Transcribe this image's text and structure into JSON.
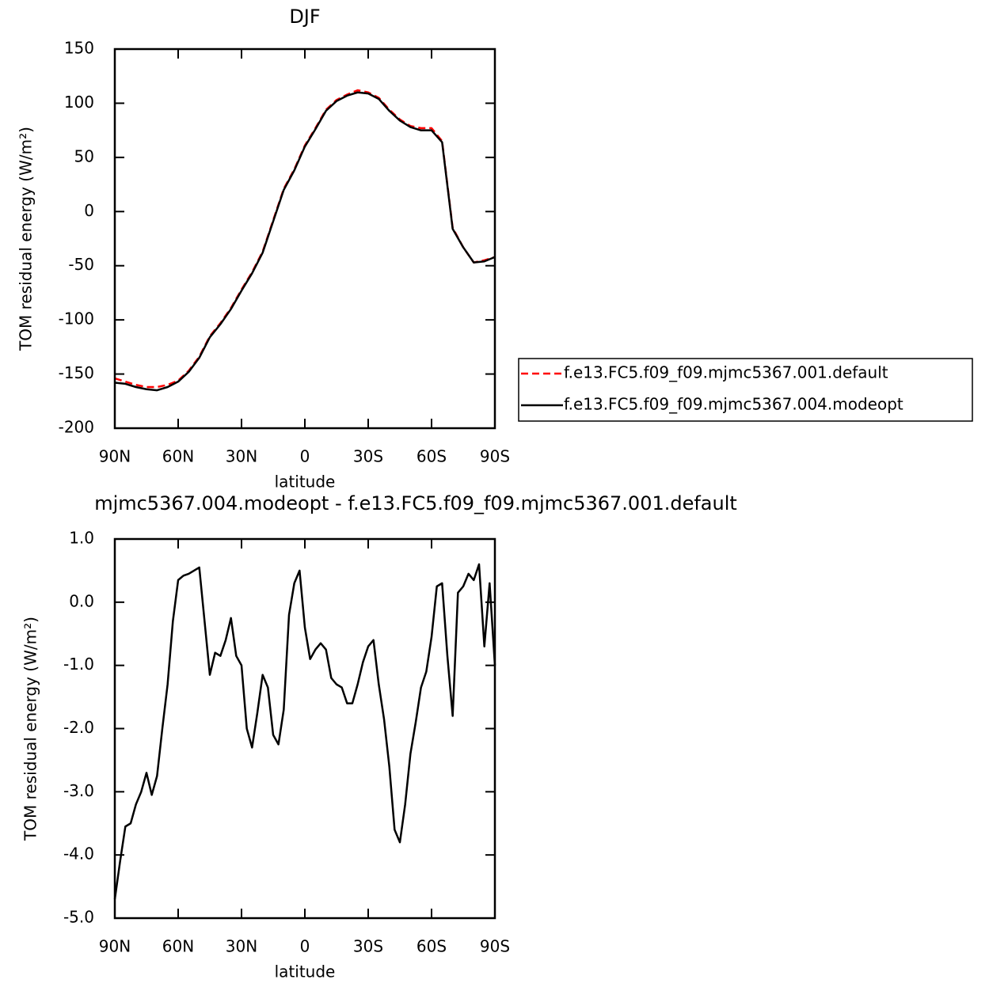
{
  "chart_data": [
    {
      "type": "line",
      "title": "DJF",
      "x_label": "latitude",
      "y_label": "TOM residual energy (W/m²)",
      "x": [
        90,
        85,
        80,
        75,
        70,
        65,
        60,
        55,
        50,
        45,
        40,
        35,
        30,
        25,
        20,
        15,
        10,
        5,
        0,
        -5,
        -10,
        -15,
        -20,
        -25,
        -30,
        -35,
        -40,
        -45,
        -50,
        -55,
        -60,
        -65,
        -70,
        -75,
        -80,
        -85,
        -90
      ],
      "xlim": [
        90,
        -90
      ],
      "xticks": [
        {
          "value": 90,
          "label": "90N"
        },
        {
          "value": 60,
          "label": "60N"
        },
        {
          "value": 30,
          "label": "30N"
        },
        0,
        {
          "value": -30,
          "label": "30S"
        },
        {
          "value": -60,
          "label": "60S"
        },
        {
          "value": -90,
          "label": "90S"
        }
      ],
      "ylim": [
        -200,
        150
      ],
      "yticks": [
        -200,
        -150,
        -100,
        -50,
        0,
        50,
        100,
        150
      ],
      "legend": "right",
      "series": [
        {
          "name": "f.e13.FC5.f09_f09.mjmc5367.001.default",
          "color": "#ff0000",
          "line_style": "dashed",
          "values": [
            -154,
            -157,
            -160,
            -162,
            -162,
            -160,
            -156,
            -147,
            -134,
            -115,
            -103,
            -89,
            -72,
            -56,
            -37,
            -8,
            21,
            39,
            61,
            77,
            94,
            103,
            108,
            112,
            110,
            105,
            94,
            85,
            79,
            77,
            77,
            65,
            -15,
            -33,
            -47,
            -45,
            -42
          ]
        },
        {
          "name": "f.e13.FC5.f09_f09.mjmc5367.004.modeopt",
          "color": "#000000",
          "line_style": "solid",
          "values": [
            -158,
            -159,
            -162,
            -164,
            -165,
            -162,
            -157,
            -148,
            -135,
            -116,
            -104,
            -90,
            -73,
            -57,
            -38,
            -9,
            20,
            38,
            60,
            76,
            93,
            102,
            107,
            110,
            109,
            104,
            93,
            84,
            78,
            75,
            75,
            64,
            -16,
            -33,
            -47,
            -46,
            -42
          ]
        }
      ]
    },
    {
      "type": "line",
      "title": "mjmc5367.004.modeopt - f.e13.FC5.f09_f09.mjmc5367.001.default",
      "x_label": "latitude",
      "y_label": "TOM residual energy (W/m²)",
      "x": [
        90,
        87.5,
        85,
        82.5,
        80,
        77.5,
        75,
        72.5,
        70,
        67.5,
        65,
        62.5,
        60,
        57.5,
        55,
        52.5,
        50,
        47.5,
        45,
        42.5,
        40,
        37.5,
        35,
        32.5,
        30,
        27.5,
        25,
        22.5,
        20,
        17.5,
        15,
        12.5,
        10,
        7.5,
        5,
        2.5,
        0,
        -2.5,
        -5,
        -7.5,
        -10,
        -12.5,
        -15,
        -17.5,
        -20,
        -22.5,
        -25,
        -27.5,
        -30,
        -32.5,
        -35,
        -37.5,
        -40,
        -42.5,
        -45,
        -47.5,
        -50,
        -52.5,
        -55,
        -57.5,
        -60,
        -62.5,
        -65,
        -67.5,
        -70,
        -72.5,
        -75,
        -77.5,
        -80,
        -82.5,
        -85,
        -87.5,
        -90
      ],
      "xlim": [
        90,
        -90
      ],
      "xticks": [
        {
          "value": 90,
          "label": "90N"
        },
        {
          "value": 60,
          "label": "60N"
        },
        {
          "value": 30,
          "label": "30N"
        },
        0,
        {
          "value": -30,
          "label": "30S"
        },
        {
          "value": -60,
          "label": "60S"
        },
        {
          "value": -90,
          "label": "90S"
        }
      ],
      "ylim": [
        -5,
        1
      ],
      "yticks": [
        {
          "value": -5,
          "label": "-5.0"
        },
        {
          "value": -4,
          "label": "-4.0"
        },
        {
          "value": -3,
          "label": "-3.0"
        },
        {
          "value": -2,
          "label": "-2.0"
        },
        {
          "value": -1,
          "label": "-1.0"
        },
        {
          "value": 0,
          "label": "0.0"
        },
        {
          "value": 1,
          "label": "1.0"
        }
      ],
      "series": [
        {
          "color": "#000000",
          "line_style": "solid",
          "values": [
            -4.7,
            -4.1,
            -3.55,
            -3.5,
            -3.2,
            -3.0,
            -2.7,
            -3.05,
            -2.75,
            -2.0,
            -1.3,
            -0.3,
            0.35,
            0.42,
            0.45,
            0.5,
            0.55,
            -0.3,
            -1.15,
            -0.8,
            -0.85,
            -0.6,
            -0.25,
            -0.85,
            -1.0,
            -2.0,
            -2.3,
            -1.75,
            -1.15,
            -1.35,
            -2.1,
            -2.25,
            -1.7,
            -0.2,
            0.3,
            0.5,
            -0.4,
            -0.9,
            -0.75,
            -0.65,
            -0.75,
            -1.2,
            -1.3,
            -1.35,
            -1.6,
            -1.6,
            -1.3,
            -0.95,
            -0.7,
            -0.6,
            -1.3,
            -1.85,
            -2.6,
            -3.6,
            -3.8,
            -3.2,
            -2.4,
            -1.9,
            -1.35,
            -1.1,
            -0.55,
            0.25,
            0.3,
            -0.85,
            -1.8,
            0.15,
            0.25,
            0.45,
            0.35,
            0.6,
            -0.7,
            0.3,
            -1.0
          ]
        }
      ]
    }
  ]
}
